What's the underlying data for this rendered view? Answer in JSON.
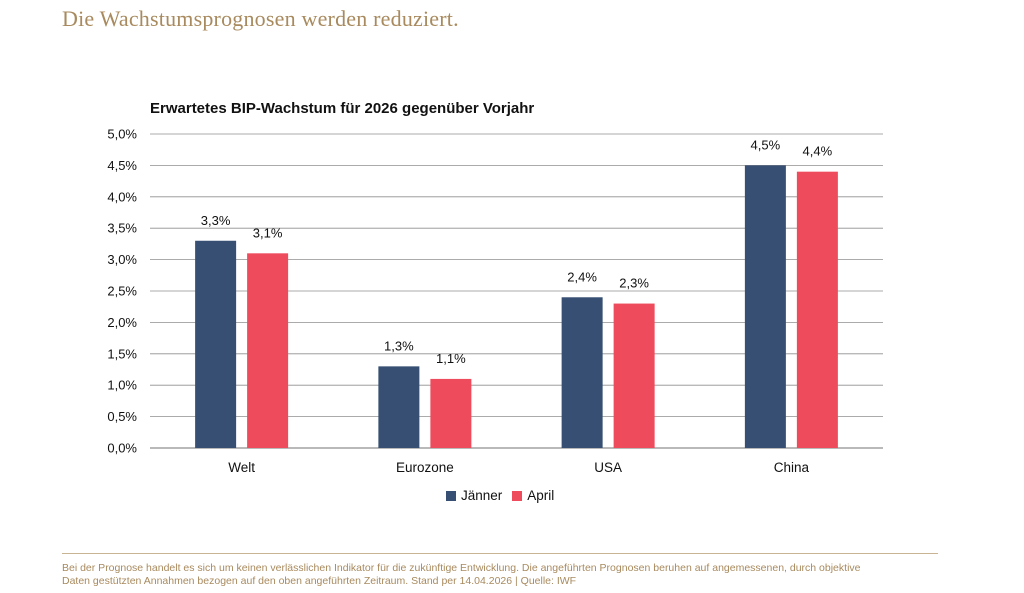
{
  "headline": "Die Wachstumsprognosen werden reduziert.",
  "footnote": {
    "line1": "Bei der Prognose handelt es sich um keinen verlässlichen Indikator für die zukünftige Entwicklung. Die angeführten Prognosen beruhen auf angemessenen, durch objektive",
    "line2": "Daten gestützten Annahmen bezogen auf den oben angeführten Zeitraum. Stand per 14.04.2026 | Quelle: IWF"
  },
  "colors": {
    "headline": "#a88a5e",
    "janner": "#364f72",
    "april": "#ee4b5c",
    "grid": "#8f8f8f"
  },
  "chart_data": {
    "type": "bar",
    "title": "Erwartetes BIP-Wachstum für 2026 gegenüber Vorjahr",
    "xlabel": "",
    "ylabel": "",
    "categories": [
      "Welt",
      "Eurozone",
      "USA",
      "China"
    ],
    "series": [
      {
        "name": "Jänner",
        "values": [
          3.3,
          1.3,
          2.4,
          4.5
        ],
        "labels": [
          "3,3%",
          "1,3%",
          "2,4%",
          "4,5%"
        ],
        "color": "#364f72"
      },
      {
        "name": "April",
        "values": [
          3.1,
          1.1,
          2.3,
          4.4
        ],
        "labels": [
          "3,1%",
          "1,1%",
          "2,3%",
          "4,4%"
        ],
        "color": "#ee4b5c"
      }
    ],
    "ylim": [
      0,
      5.0
    ],
    "yticks": [
      0,
      0.5,
      1.0,
      1.5,
      2.0,
      2.5,
      3.0,
      3.5,
      4.0,
      4.5,
      5.0
    ],
    "ytick_labels": [
      "0,0%",
      "0,5%",
      "1,0%",
      "1,5%",
      "2,0%",
      "2,5%",
      "3,0%",
      "3,5%",
      "4,0%",
      "4,5%",
      "5,0%"
    ],
    "grid": true,
    "legend_position": "bottom-center"
  }
}
